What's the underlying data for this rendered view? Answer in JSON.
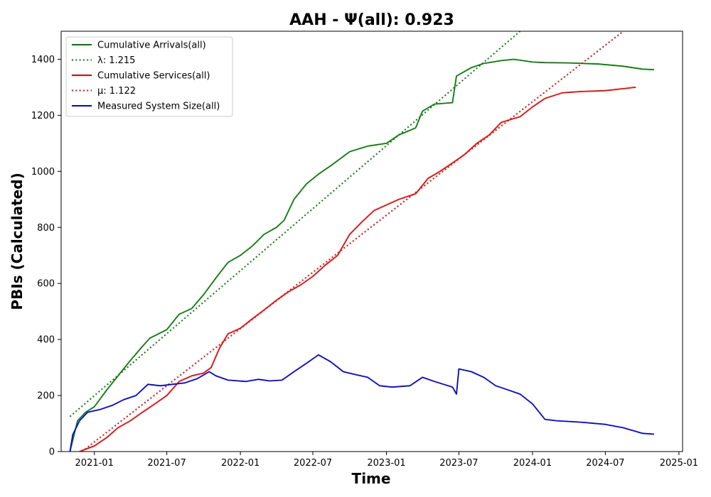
{
  "chart_data": {
    "type": "line",
    "title": "AAH -  Ψ(all): 0.923",
    "xlabel": "Time",
    "ylabel": "PBIs (Calculated)",
    "xlim": [
      "2020-10-10",
      "2025-01-10"
    ],
    "ylim": [
      0,
      1500
    ],
    "xticks": [
      "2021-01",
      "2021-07",
      "2022-01",
      "2022-07",
      "2023-01",
      "2023-07",
      "2024-01",
      "2024-07",
      "2025-01"
    ],
    "yticks": [
      0,
      200,
      400,
      600,
      800,
      1000,
      1200,
      1400
    ],
    "grid": false,
    "legend_position": "top-left",
    "series": [
      {
        "name": "Cumulative Arrivals(all)",
        "color": "#008000",
        "style": "solid",
        "points": [
          [
            "2020-11-01",
            0
          ],
          [
            "2020-11-20",
            110
          ],
          [
            "2020-12-10",
            140
          ],
          [
            "2021-01-01",
            160
          ],
          [
            "2021-02-01",
            220
          ],
          [
            "2021-03-01",
            270
          ],
          [
            "2021-04-01",
            325
          ],
          [
            "2021-05-01",
            375
          ],
          [
            "2021-05-20",
            405
          ],
          [
            "2021-07-01",
            435
          ],
          [
            "2021-08-01",
            490
          ],
          [
            "2021-09-01",
            510
          ],
          [
            "2021-10-01",
            560
          ],
          [
            "2021-11-01",
            620
          ],
          [
            "2021-12-01",
            675
          ],
          [
            "2022-01-01",
            700
          ],
          [
            "2022-02-01",
            735
          ],
          [
            "2022-03-01",
            775
          ],
          [
            "2022-04-01",
            800
          ],
          [
            "2022-04-20",
            825
          ],
          [
            "2022-05-15",
            900
          ],
          [
            "2022-06-15",
            955
          ],
          [
            "2022-07-15",
            990
          ],
          [
            "2022-08-15",
            1020
          ],
          [
            "2022-10-01",
            1070
          ],
          [
            "2022-11-15",
            1090
          ],
          [
            "2023-01-01",
            1100
          ],
          [
            "2023-02-01",
            1130
          ],
          [
            "2023-03-15",
            1155
          ],
          [
            "2023-04-01",
            1215
          ],
          [
            "2023-05-01",
            1240
          ],
          [
            "2023-06-15",
            1245
          ],
          [
            "2023-06-25",
            1340
          ],
          [
            "2023-08-01",
            1370
          ],
          [
            "2023-09-01",
            1385
          ],
          [
            "2023-10-15",
            1395
          ],
          [
            "2023-11-15",
            1400
          ],
          [
            "2024-01-01",
            1390
          ],
          [
            "2024-02-01",
            1388
          ],
          [
            "2024-04-01",
            1387
          ],
          [
            "2024-06-15",
            1383
          ],
          [
            "2024-08-15",
            1375
          ],
          [
            "2024-10-01",
            1365
          ],
          [
            "2024-10-31",
            1363
          ]
        ]
      },
      {
        "name": "λ: 1.215",
        "color": "#008000",
        "style": "dotted",
        "points": [
          [
            "2020-11-01",
            125
          ],
          [
            "2023-12-01",
            1500
          ]
        ]
      },
      {
        "name": "Cumulative Services(all)",
        "color": "#ff0000",
        "style": "solid",
        "points": [
          [
            "2020-11-25",
            0
          ],
          [
            "2021-01-01",
            20
          ],
          [
            "2021-02-01",
            50
          ],
          [
            "2021-03-01",
            85
          ],
          [
            "2021-04-01",
            110
          ],
          [
            "2021-05-01",
            140
          ],
          [
            "2021-06-01",
            170
          ],
          [
            "2021-07-01",
            200
          ],
          [
            "2021-08-01",
            250
          ],
          [
            "2021-09-01",
            270
          ],
          [
            "2021-10-01",
            280
          ],
          [
            "2021-10-20",
            300
          ],
          [
            "2021-11-10",
            370
          ],
          [
            "2021-12-01",
            420
          ],
          [
            "2022-01-01",
            440
          ],
          [
            "2022-02-01",
            475
          ],
          [
            "2022-03-01",
            505
          ],
          [
            "2022-04-01",
            540
          ],
          [
            "2022-05-01",
            570
          ],
          [
            "2022-06-01",
            595
          ],
          [
            "2022-07-01",
            625
          ],
          [
            "2022-08-01",
            665
          ],
          [
            "2022-09-01",
            700
          ],
          [
            "2022-10-01",
            775
          ],
          [
            "2022-11-01",
            820
          ],
          [
            "2022-12-01",
            860
          ],
          [
            "2023-01-01",
            880
          ],
          [
            "2023-02-01",
            900
          ],
          [
            "2023-03-15",
            920
          ],
          [
            "2023-04-15",
            975
          ],
          [
            "2023-05-15",
            1000
          ],
          [
            "2023-06-15",
            1030
          ],
          [
            "2023-07-15",
            1060
          ],
          [
            "2023-08-15",
            1100
          ],
          [
            "2023-09-15",
            1130
          ],
          [
            "2023-10-15",
            1175
          ],
          [
            "2023-12-01",
            1195
          ],
          [
            "2024-01-01",
            1230
          ],
          [
            "2024-02-01",
            1260
          ],
          [
            "2024-03-15",
            1280
          ],
          [
            "2024-05-01",
            1285
          ],
          [
            "2024-07-01",
            1288
          ],
          [
            "2024-08-15",
            1295
          ],
          [
            "2024-09-15",
            1300
          ]
        ]
      },
      {
        "name": "μ: 1.122",
        "color": "#ff0000",
        "style": "dotted",
        "points": [
          [
            "2020-12-01",
            0
          ],
          [
            "2024-08-15",
            1500
          ]
        ]
      },
      {
        "name": "Measured System Size(all)",
        "color": "#0000ff",
        "style": "solid",
        "points": [
          [
            "2020-11-01",
            0
          ],
          [
            "2020-11-08",
            60
          ],
          [
            "2020-11-25",
            110
          ],
          [
            "2020-12-15",
            140
          ],
          [
            "2021-01-15",
            150
          ],
          [
            "2021-02-15",
            165
          ],
          [
            "2021-03-15",
            185
          ],
          [
            "2021-04-15",
            200
          ],
          [
            "2021-05-15",
            240
          ],
          [
            "2021-06-15",
            235
          ],
          [
            "2021-07-15",
            240
          ],
          [
            "2021-08-15",
            245
          ],
          [
            "2021-09-15",
            260
          ],
          [
            "2021-10-15",
            285
          ],
          [
            "2021-11-01",
            270
          ],
          [
            "2021-12-01",
            255
          ],
          [
            "2022-01-15",
            250
          ],
          [
            "2022-02-15",
            258
          ],
          [
            "2022-03-15",
            252
          ],
          [
            "2022-04-15",
            255
          ],
          [
            "2022-05-15",
            285
          ],
          [
            "2022-06-15",
            315
          ],
          [
            "2022-07-15",
            345
          ],
          [
            "2022-08-15",
            320
          ],
          [
            "2022-09-15",
            285
          ],
          [
            "2022-10-15",
            275
          ],
          [
            "2022-11-15",
            265
          ],
          [
            "2022-12-15",
            235
          ],
          [
            "2023-01-15",
            230
          ],
          [
            "2023-03-01",
            235
          ],
          [
            "2023-04-01",
            265
          ],
          [
            "2023-05-01",
            250
          ],
          [
            "2023-06-15",
            230
          ],
          [
            "2023-06-25",
            205
          ],
          [
            "2023-07-01",
            295
          ],
          [
            "2023-08-01",
            285
          ],
          [
            "2023-09-01",
            265
          ],
          [
            "2023-10-01",
            235
          ],
          [
            "2023-11-01",
            220
          ],
          [
            "2023-12-01",
            205
          ],
          [
            "2024-01-01",
            170
          ],
          [
            "2024-02-01",
            115
          ],
          [
            "2024-03-01",
            110
          ],
          [
            "2024-05-01",
            105
          ],
          [
            "2024-07-01",
            97
          ],
          [
            "2024-08-15",
            85
          ],
          [
            "2024-10-01",
            65
          ],
          [
            "2024-10-31",
            62
          ]
        ]
      }
    ]
  }
}
